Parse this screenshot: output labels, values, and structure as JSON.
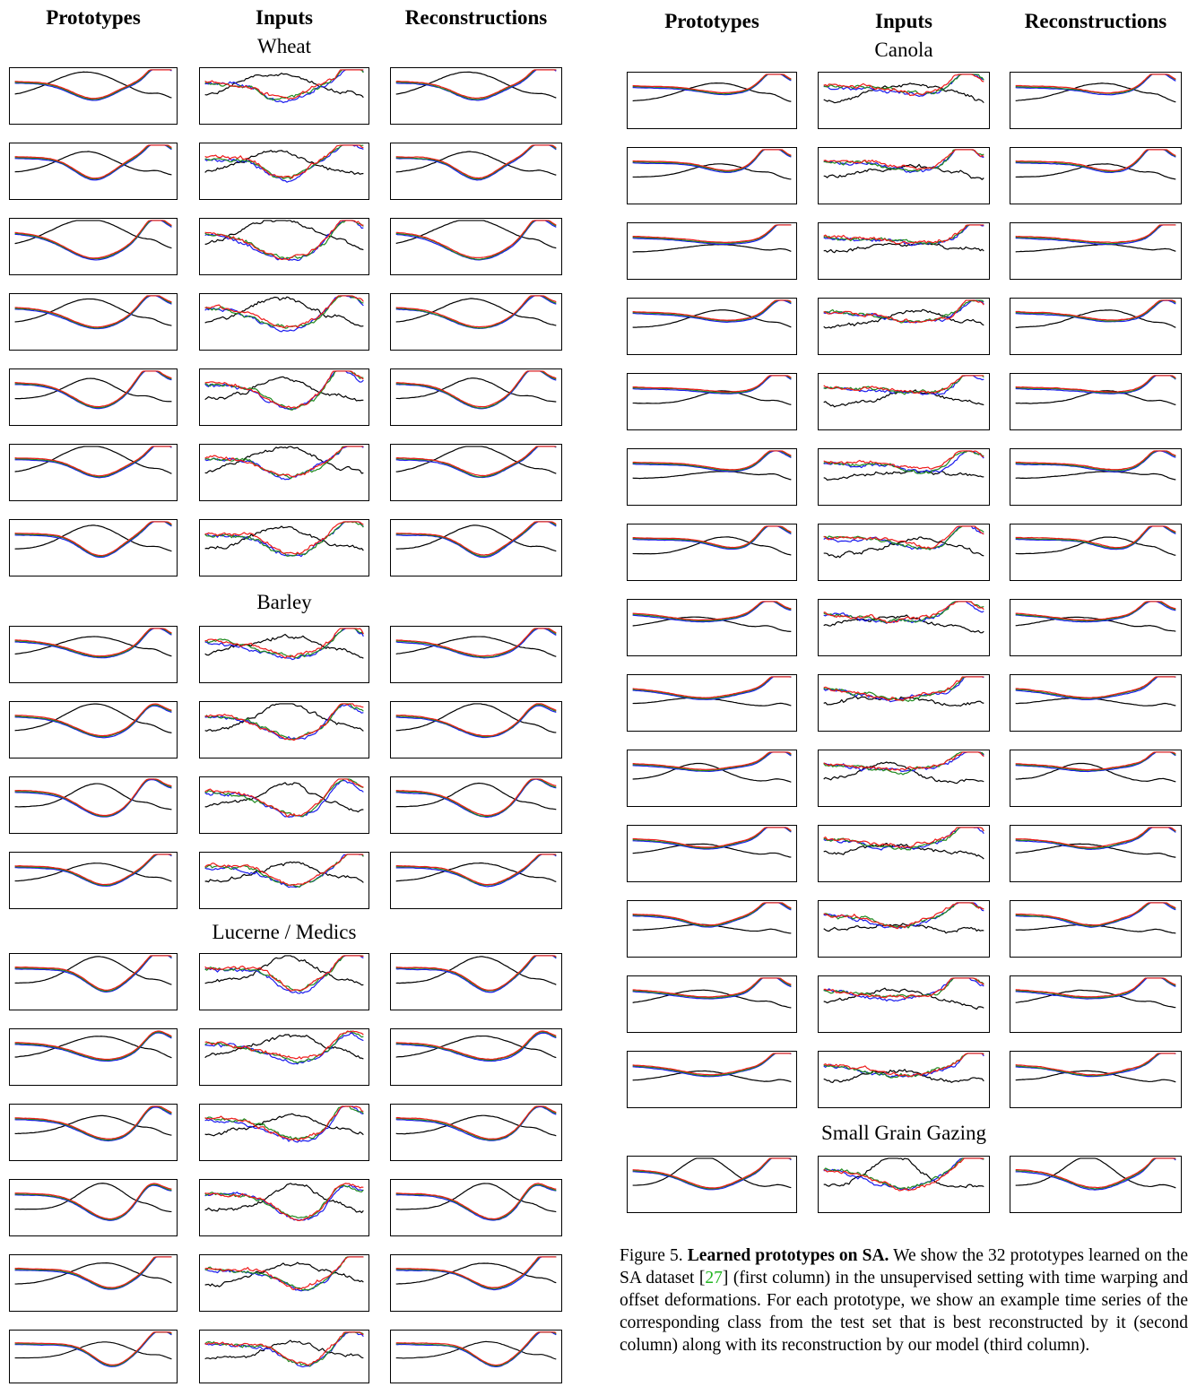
{
  "column_headers": {
    "prototypes": "Prototypes",
    "inputs": "Inputs",
    "reconstructions": "Reconstructions"
  },
  "sections": {
    "wheat": "Wheat",
    "barley": "Barley",
    "lucerne": "Lucerne / Medics",
    "canola": "Canola",
    "small_grain": "Small Grain Gazing"
  },
  "colors": {
    "blue": "#1a1aee",
    "green": "#1f8a1f",
    "red": "#ee1a1a",
    "black": "#000000"
  },
  "caption": {
    "prefix": "Figure 5.",
    "bold": "Learned prototypes on SA.",
    "text1": "We show the 32 prototypes learned on the SA dataset [",
    "ref": "27",
    "text2": "] (first column) in the unsupervised setting with time warping and offset deformations. For each prototype, we show an example time series of the corresponding class from the test set that is best reconstructed by it (second column) along with its reconstruction by our model (third column)."
  }
}
